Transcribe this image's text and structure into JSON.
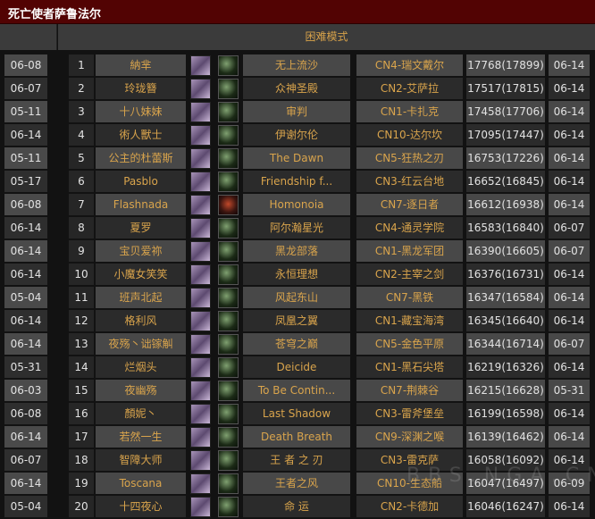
{
  "title": "死亡使者萨鲁法尔",
  "header": {
    "mode": "困难模式"
  },
  "watermark": "BBS.NGA.CN",
  "colors": {
    "title_bar": "#520303",
    "gold_text": "#d9a44c"
  },
  "rows": [
    {
      "left_date": "06-08",
      "rank": "1",
      "name": "納芈",
      "guild": "无上流沙",
      "realm": "CN4-瑞文戴尔",
      "score": "17768(17899)",
      "date": "06-14"
    },
    {
      "left_date": "06-07",
      "rank": "2",
      "name": "玲珑簪",
      "guild": "众神圣殿",
      "realm": "CN2-艾萨拉",
      "score": "17517(17815)",
      "date": "06-14"
    },
    {
      "left_date": "05-11",
      "rank": "3",
      "name": "十八妹妹",
      "guild": "审判",
      "realm": "CN1-卡扎克",
      "score": "17458(17706)",
      "date": "06-14"
    },
    {
      "left_date": "06-14",
      "rank": "4",
      "name": "術人獸士",
      "guild": "伊谢尔伦",
      "realm": "CN10-达尔坎",
      "score": "17095(17447)",
      "date": "06-14"
    },
    {
      "left_date": "05-11",
      "rank": "5",
      "name": "公主的杜蕾斯",
      "guild": "The Dawn",
      "realm": "CN5-狂热之刃",
      "score": "16753(17226)",
      "date": "06-14"
    },
    {
      "left_date": "05-17",
      "rank": "6",
      "name": "Pasblo",
      "guild": "Friendship f...",
      "realm": "CN3-红云台地",
      "score": "16652(16845)",
      "date": "06-14"
    },
    {
      "left_date": "06-08",
      "rank": "7",
      "name": "Flashnada",
      "guild": "Homonoia",
      "realm": "CN7-逐日者",
      "score": "16612(16938)",
      "date": "06-14",
      "icon2": "red"
    },
    {
      "left_date": "06-14",
      "rank": "8",
      "name": "夏罗",
      "guild": "阿尔瀚星光",
      "realm": "CN4-通灵学院",
      "score": "16583(16840)",
      "date": "06-07"
    },
    {
      "left_date": "06-14",
      "rank": "9",
      "name": "宝贝爱祢",
      "guild": "黑龙部落",
      "realm": "CN1-黑龙军团",
      "score": "16390(16605)",
      "date": "06-07"
    },
    {
      "left_date": "06-14",
      "rank": "10",
      "name": "小魔女笑笑",
      "guild": "永恒理想",
      "realm": "CN2-主宰之剑",
      "score": "16376(16731)",
      "date": "06-14"
    },
    {
      "left_date": "05-04",
      "rank": "11",
      "name": "班声北起",
      "guild": "风起东山",
      "realm": "CN7-黑铁",
      "score": "16347(16584)",
      "date": "06-14"
    },
    {
      "left_date": "06-14",
      "rank": "12",
      "name": "格利风",
      "guild": "凤凰之翼",
      "realm": "CN1-藏宝海湾",
      "score": "16345(16640)",
      "date": "06-14"
    },
    {
      "left_date": "06-14",
      "rank": "13",
      "name": "夜殇丶诎镓觓",
      "guild": "苍穹之巅",
      "realm": "CN5-金色平原",
      "score": "16344(16714)",
      "date": "06-07"
    },
    {
      "left_date": "05-31",
      "rank": "14",
      "name": "烂烟头",
      "guild": "Deicide",
      "realm": "CN1-黑石尖塔",
      "score": "16219(16326)",
      "date": "06-14"
    },
    {
      "left_date": "06-03",
      "rank": "15",
      "name": "夜幽殇",
      "guild": "To Be Contin...",
      "realm": "CN7-荆棘谷",
      "score": "16215(16628)",
      "date": "05-31"
    },
    {
      "left_date": "06-08",
      "rank": "16",
      "name": "顏妮丶",
      "guild": "Last Shadow",
      "realm": "CN3-雷斧堡垒",
      "score": "16199(16598)",
      "date": "06-14"
    },
    {
      "left_date": "06-14",
      "rank": "17",
      "name": "若然一生",
      "guild": "Death Breath",
      "realm": "CN9-深渊之喉",
      "score": "16139(16462)",
      "date": "06-14"
    },
    {
      "left_date": "06-07",
      "rank": "18",
      "name": "智障大师",
      "guild": "王 者 之 刃",
      "realm": "CN3-雷克萨",
      "score": "16058(16092)",
      "date": "06-14"
    },
    {
      "left_date": "06-14",
      "rank": "19",
      "name": "Toscana",
      "guild": "王者之风",
      "realm": "CN10-生态船",
      "score": "16047(16497)",
      "date": "06-09"
    },
    {
      "left_date": "05-04",
      "rank": "20",
      "name": "十四夜心",
      "guild": "命 运",
      "realm": "CN2-卡德加",
      "score": "16046(16247)",
      "date": "06-14"
    }
  ]
}
